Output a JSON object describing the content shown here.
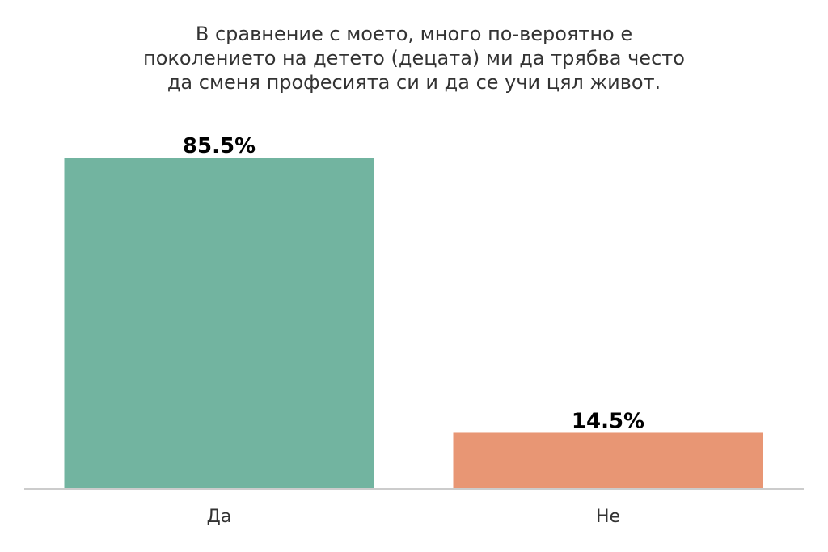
{
  "chart_data": {
    "type": "bar",
    "title_lines": [
      "В сравнение с моето, много по-вероятно е",
      "поколението на детето (децата) ми да трябва често",
      "да сменя професията си и да се учи цял живот."
    ],
    "categories": [
      "Да",
      "Не"
    ],
    "values": [
      85.5,
      14.5
    ],
    "value_labels": [
      "85.5%",
      "14.5%"
    ],
    "colors": [
      "#72b4a0",
      "#e89674"
    ],
    "xlabel": "",
    "ylabel": "",
    "ylim": [
      0,
      85.5
    ],
    "grid": false,
    "legend": "none",
    "baseline_color": "#cccccc"
  }
}
